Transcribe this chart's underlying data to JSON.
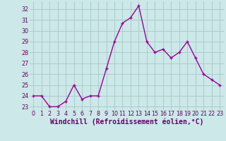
{
  "x": [
    0,
    1,
    2,
    3,
    4,
    5,
    6,
    7,
    8,
    9,
    10,
    11,
    12,
    13,
    14,
    15,
    16,
    17,
    18,
    19,
    20,
    21,
    22,
    23
  ],
  "y": [
    24,
    24,
    23,
    23,
    23.5,
    25,
    23.7,
    24,
    24,
    26.5,
    29,
    30.7,
    31.2,
    32.3,
    29,
    28,
    28.3,
    27.5,
    28,
    29,
    27.5,
    26,
    25.5,
    25
  ],
  "line_color": "#990099",
  "marker": "+",
  "marker_color": "#990099",
  "bg_color": "#cce8e8",
  "grid_color": "#aacccc",
  "xlabel": "Windchill (Refroidissement éolien,°C)",
  "ylim": [
    22.7,
    32.7
  ],
  "xlim": [
    -0.5,
    23.5
  ],
  "yticks": [
    23,
    24,
    25,
    26,
    27,
    28,
    29,
    30,
    31,
    32
  ],
  "xticks": [
    0,
    1,
    2,
    3,
    4,
    5,
    6,
    7,
    8,
    9,
    10,
    11,
    12,
    13,
    14,
    15,
    16,
    17,
    18,
    19,
    20,
    21,
    22,
    23
  ],
  "tick_fontsize": 5.8,
  "xlabel_fontsize": 7.0,
  "line_width": 1.0,
  "marker_size": 3.5
}
